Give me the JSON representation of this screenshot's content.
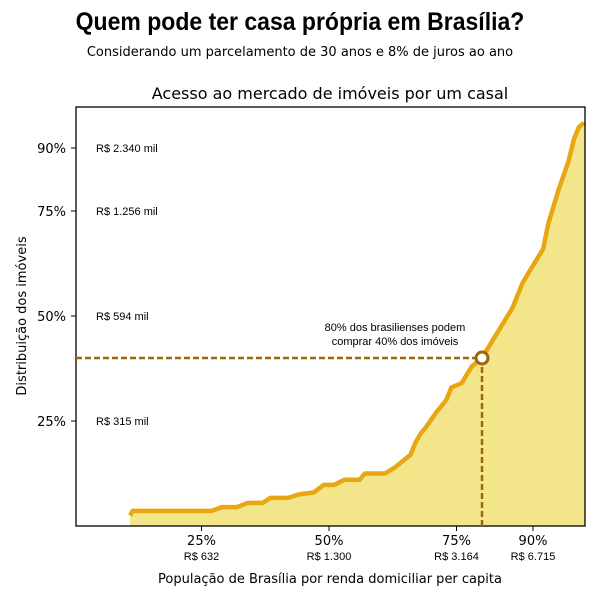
{
  "title": "Quem pode ter casa própria em Brasília?",
  "subtitle": "Considerando um parcelamento de 30 anos e 8% de juros ao ano",
  "chart_data": {
    "type": "area",
    "title": "Acesso ao mercado de imóveis por um casal",
    "xlabel": "População de Brasília por renda domiciliar per capita",
    "ylabel": "Distribuição dos imóveis",
    "xlim": [
      0,
      100
    ],
    "ylim": [
      0,
      100
    ],
    "x_ticks": [
      {
        "value": 25,
        "label": "25%",
        "sublabel": "R$ 632"
      },
      {
        "value": 50,
        "label": "50%",
        "sublabel": "R$ 1.300"
      },
      {
        "value": 75,
        "label": "75%",
        "sublabel": "R$ 3.164"
      },
      {
        "value": 90,
        "label": "90%",
        "sublabel": "R$ 6.715"
      }
    ],
    "y_ticks": [
      {
        "value": 25,
        "label": "25%",
        "sublabel": "R$ 315 mil"
      },
      {
        "value": 50,
        "label": "50%",
        "sublabel": "R$ 594 mil"
      },
      {
        "value": 75,
        "label": "75%",
        "sublabel": "R$ 1.256 mil"
      },
      {
        "value": 90,
        "label": "90%",
        "sublabel": "R$ 2.340 mil"
      }
    ],
    "x": [
      11,
      11.5,
      27,
      29,
      32,
      34,
      37,
      38.5,
      42,
      44,
      47,
      49,
      51,
      53,
      56,
      57,
      61,
      63,
      65,
      66,
      67,
      68,
      69,
      71,
      73,
      74,
      76,
      77,
      78,
      80,
      82,
      84,
      86,
      88,
      90,
      92,
      93,
      95,
      97,
      98,
      99,
      100
    ],
    "y": [
      2.5,
      3.6,
      3.6,
      4.5,
      4.5,
      5.5,
      5.5,
      6.7,
      6.7,
      7.5,
      8,
      9.8,
      9.8,
      11,
      11,
      12.5,
      12.5,
      14,
      16,
      17,
      20,
      22,
      23.5,
      27,
      30,
      33,
      34,
      36,
      38,
      40,
      44,
      48,
      52,
      58,
      62,
      66,
      72,
      80,
      87,
      92,
      95,
      96
    ],
    "highlight": {
      "x": 80,
      "y": 40,
      "annotation_line1": "80% dos brasilienses podem",
      "annotation_line2": "comprar 40% dos imóveis"
    },
    "colors": {
      "fill": "#f3e68a",
      "line": "#e8a612",
      "marker": "#a0660a"
    }
  }
}
